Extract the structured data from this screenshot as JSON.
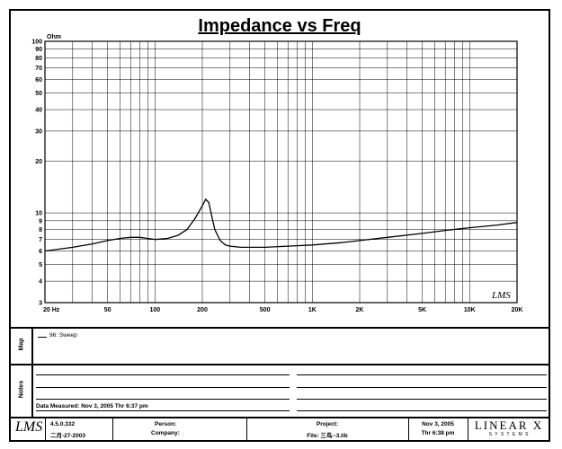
{
  "chart_data": {
    "type": "line",
    "title": "Impedance vs Freq",
    "ylabel": "Ohm",
    "xscale": "log",
    "yscale": "log",
    "xlim": [
      20,
      20000
    ],
    "ylim": [
      3,
      100
    ],
    "grid": true,
    "x_ticks": [
      {
        "v": 20,
        "label": "20  Hz"
      },
      {
        "v": 50,
        "label": "50"
      },
      {
        "v": 100,
        "label": "100"
      },
      {
        "v": 200,
        "label": "200"
      },
      {
        "v": 500,
        "label": "500"
      },
      {
        "v": 1000,
        "label": "1K"
      },
      {
        "v": 2000,
        "label": "2K"
      },
      {
        "v": 5000,
        "label": "5K"
      },
      {
        "v": 10000,
        "label": "10K"
      },
      {
        "v": 20000,
        "label": "20K"
      }
    ],
    "y_ticks": [
      {
        "v": 100,
        "label": "100"
      },
      {
        "v": 90,
        "label": "90"
      },
      {
        "v": 80,
        "label": "80"
      },
      {
        "v": 70,
        "label": "70"
      },
      {
        "v": 60,
        "label": "60"
      },
      {
        "v": 50,
        "label": "50"
      },
      {
        "v": 40,
        "label": "40"
      },
      {
        "v": 30,
        "label": "30"
      },
      {
        "v": 20,
        "label": "20"
      },
      {
        "v": 10,
        "label": "10"
      },
      {
        "v": 9,
        "label": "9"
      },
      {
        "v": 8,
        "label": "8"
      },
      {
        "v": 7,
        "label": "7"
      },
      {
        "v": 6,
        "label": "6"
      },
      {
        "v": 5,
        "label": "5"
      },
      {
        "v": 4,
        "label": "4"
      },
      {
        "v": 3,
        "label": "3"
      }
    ],
    "series": [
      {
        "name": "96: Sweep",
        "color": "#000000",
        "x": [
          20,
          30,
          40,
          50,
          60,
          70,
          80,
          90,
          100,
          120,
          140,
          160,
          180,
          200,
          210,
          220,
          230,
          240,
          260,
          280,
          300,
          350,
          400,
          500,
          700,
          1000,
          1500,
          2000,
          3000,
          5000,
          7000,
          10000,
          15000,
          20000
        ],
        "y": [
          6.0,
          6.3,
          6.6,
          6.9,
          7.1,
          7.2,
          7.2,
          7.1,
          7.0,
          7.1,
          7.4,
          8.0,
          9.3,
          11.0,
          12.0,
          11.5,
          9.5,
          8.0,
          6.9,
          6.5,
          6.4,
          6.3,
          6.3,
          6.3,
          6.4,
          6.5,
          6.7,
          6.9,
          7.2,
          7.6,
          7.9,
          8.2,
          8.5,
          8.8
        ]
      }
    ]
  },
  "corner_logo": "LMS",
  "map": {
    "label": "Map",
    "legend_entry": "96: Sweep"
  },
  "notes": {
    "label": "Notes",
    "measured": "Data Measured: Nov 3, 2005  Thr  6:37 pm"
  },
  "footer": {
    "logo": "LMS",
    "version": "4.5.0.332",
    "build_date": "二月-27-2003",
    "person_label": "Person:",
    "company_label": "Company:",
    "project_label": "Project:",
    "file_label": "File: 三鸟--3.lib",
    "date": "Nov  3, 2005",
    "time": "Thr  6:38 pm",
    "brand": "LINEAR X",
    "brand_sub": "S Y S T E M S"
  }
}
